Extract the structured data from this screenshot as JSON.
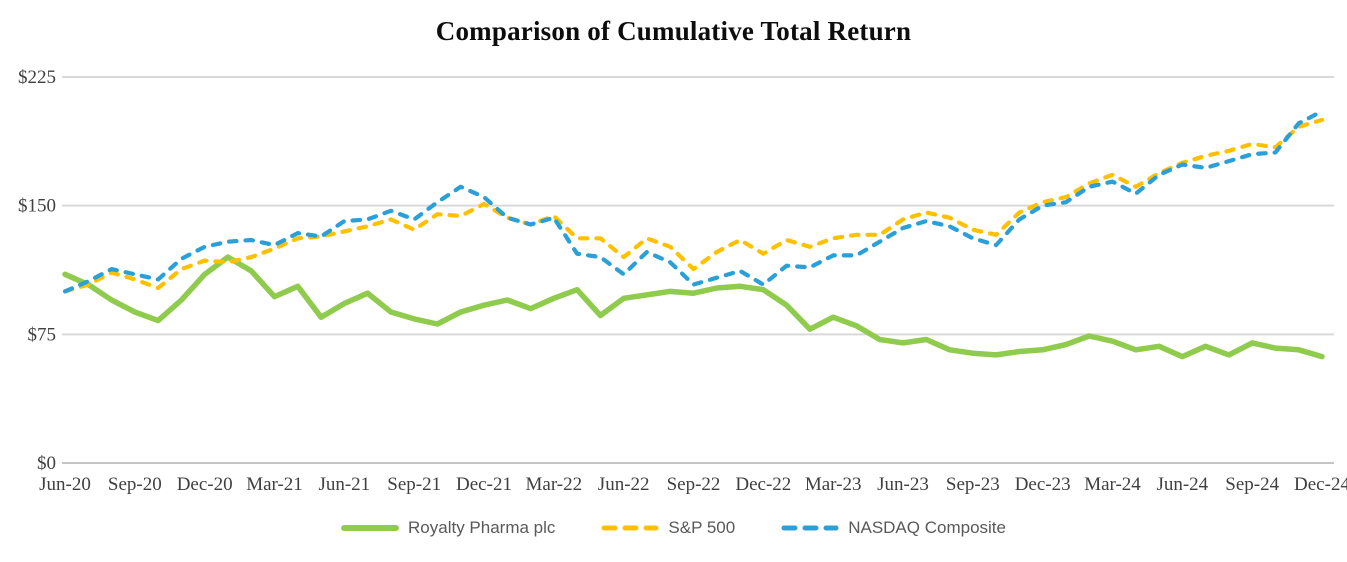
{
  "chart_data": {
    "type": "line",
    "title": "Comparison of Cumulative Total Return",
    "xlabel": "",
    "ylabel": "",
    "ylim": [
      0,
      225
    ],
    "y_ticks": [
      0,
      75,
      150,
      225
    ],
    "y_tick_labels": [
      "$0",
      "$75",
      "$150",
      "$225"
    ],
    "x_tick_labels": [
      "Jun-20",
      "Sep-20",
      "Dec-20",
      "Mar-21",
      "Jun-21",
      "Sep-21",
      "Dec-21",
      "Mar-22",
      "Jun-22",
      "Sep-22",
      "Dec-22",
      "Mar-23",
      "Jun-23",
      "Sep-23",
      "Dec-23",
      "Mar-24",
      "Jun-24",
      "Sep-24",
      "Dec-24"
    ],
    "grid": true,
    "legend_position": "bottom",
    "x": [
      "Jun-20",
      "Jul-20",
      "Aug-20",
      "Sep-20",
      "Oct-20",
      "Nov-20",
      "Dec-20",
      "Jan-21",
      "Feb-21",
      "Mar-21",
      "Apr-21",
      "May-21",
      "Jun-21",
      "Jul-21",
      "Aug-21",
      "Sep-21",
      "Oct-21",
      "Nov-21",
      "Dec-21",
      "Jan-22",
      "Feb-22",
      "Mar-22",
      "Apr-22",
      "May-22",
      "Jun-22",
      "Jul-22",
      "Aug-22",
      "Sep-22",
      "Oct-22",
      "Nov-22",
      "Dec-22",
      "Jan-23",
      "Feb-23",
      "Mar-23",
      "Apr-23",
      "May-23",
      "Jun-23",
      "Jul-23",
      "Aug-23",
      "Sep-23",
      "Oct-23",
      "Nov-23",
      "Dec-23",
      "Jan-24",
      "Feb-24",
      "Mar-24",
      "Apr-24",
      "May-24",
      "Jun-24",
      "Jul-24",
      "Aug-24",
      "Sep-24",
      "Oct-24",
      "Nov-24",
      "Dec-24"
    ],
    "series": [
      {
        "name": "Royalty Pharma plc",
        "color": "#8FCB4C",
        "dash": "solid",
        "values": [
          110,
          104,
          95,
          88,
          83,
          95,
          110,
          120,
          112,
          97,
          103,
          85,
          93,
          99,
          88,
          84,
          81,
          88,
          92,
          95,
          90,
          96,
          101,
          86,
          96,
          98,
          100,
          99,
          102,
          103,
          101,
          92,
          78,
          85,
          80,
          72,
          70,
          72,
          66,
          64,
          63,
          65,
          66,
          69,
          74,
          71,
          66,
          68,
          62,
          68,
          63,
          70,
          67,
          66,
          62
        ]
      },
      {
        "name": "S&P 500",
        "color": "#FFC000",
        "dash": "dashed",
        "values": [
          100,
          104,
          111,
          107,
          102,
          113,
          118,
          117,
          120,
          125,
          131,
          132,
          135,
          138,
          142,
          136,
          145,
          144,
          151,
          143,
          139,
          144,
          131,
          131,
          120,
          131,
          126,
          113,
          123,
          130,
          122,
          130,
          126,
          131,
          133,
          133,
          142,
          146,
          143,
          136,
          133,
          146,
          152,
          155,
          163,
          168,
          161,
          169,
          175,
          179,
          182,
          186,
          184,
          196,
          200
        ]
      },
      {
        "name": "NASDAQ Composite",
        "color": "#2B9FD8",
        "dash": "dashed",
        "values": [
          100,
          106,
          113,
          110,
          107,
          119,
          126,
          129,
          130,
          127,
          134,
          132,
          141,
          142,
          147,
          142,
          152,
          161,
          155,
          143,
          139,
          143,
          122,
          120,
          110,
          123,
          117,
          104,
          108,
          112,
          104,
          115,
          114,
          121,
          121,
          129,
          137,
          141,
          138,
          131,
          127,
          142,
          150,
          152,
          161,
          164,
          157,
          168,
          174,
          172,
          176,
          180,
          181,
          198,
          205
        ]
      }
    ],
    "colors": {
      "gridline": "#D9D9D9",
      "axis_line": "#C6C6C6",
      "tick_label": "#404040",
      "legend_text": "#595959",
      "title_text": "#0d0d0d"
    }
  }
}
